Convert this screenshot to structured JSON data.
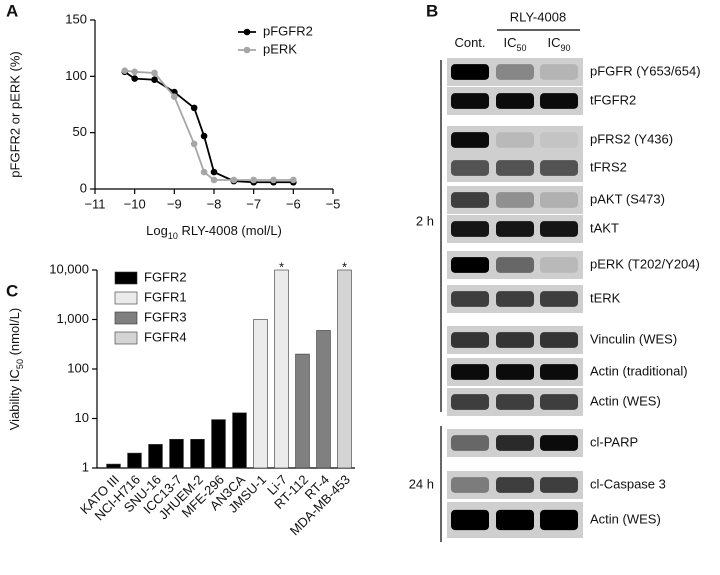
{
  "chart_data": [
    {
      "type": "line",
      "panel_label": "A",
      "x_label": [
        "Log",
        "10",
        " RLY-4008 (mol/L)"
      ],
      "y_label": "pFGFR2 or pERK (%)",
      "x": [
        -10.25,
        -10,
        -9.5,
        -9,
        -8.5,
        -8.25,
        -8,
        -7.5,
        -7,
        -6.5,
        -6
      ],
      "series": [
        {
          "name": "pFGFR2",
          "color": "#000000",
          "values": [
            104,
            98,
            97,
            86,
            72,
            47,
            15,
            7,
            6,
            6,
            6
          ]
        },
        {
          "name": "pERK",
          "color": "#a6a6a6",
          "values": [
            105,
            104,
            103,
            82,
            40,
            15,
            8,
            8,
            8,
            8,
            8
          ]
        }
      ],
      "xlim": [
        -11,
        -5
      ],
      "xticks": [
        {
          "value": -11,
          "label": "−11"
        },
        {
          "value": -10,
          "label": "−10"
        },
        {
          "value": -9,
          "label": "−9"
        },
        {
          "value": -8,
          "label": "−8"
        },
        {
          "value": -7,
          "label": "−7"
        },
        {
          "value": -6,
          "label": "−6"
        },
        {
          "value": -5,
          "label": "−5"
        }
      ],
      "ylim": [
        0,
        150
      ],
      "yticks": [
        0,
        50,
        100,
        150
      ],
      "legend": "upper right"
    },
    {
      "type": "bar",
      "panel_label": "C",
      "log_scale": true,
      "y_label": [
        "Viability IC",
        "50",
        " (nmol/L)"
      ],
      "categories": [
        "KATO III",
        "NCI-H716",
        "SNU-16",
        "ICC13-7",
        "JHUEM-2",
        "MFE-296",
        "AN3CA",
        "JMSU-1",
        "Li-7",
        "RT-112",
        "RT-4",
        "MDA-MB-453"
      ],
      "series": [
        {
          "name": "FGFR2",
          "color": "#000000",
          "values": [
            1.2,
            2,
            3,
            3.8,
            3.8,
            9.5,
            13,
            null,
            null,
            null,
            null,
            null
          ]
        },
        {
          "name": "FGFR1",
          "color": "#ebebeb",
          "values": [
            null,
            null,
            null,
            null,
            null,
            null,
            null,
            1000,
            10000,
            null,
            null,
            null
          ]
        },
        {
          "name": "FGFR3",
          "color": "#808080",
          "values": [
            null,
            null,
            null,
            null,
            null,
            null,
            null,
            null,
            null,
            200,
            600,
            null
          ]
        },
        {
          "name": "FGFR4",
          "color": "#d4d4d4",
          "values": [
            null,
            null,
            null,
            null,
            null,
            null,
            null,
            null,
            null,
            null,
            null,
            10000
          ]
        }
      ],
      "ylim": [
        1,
        10000
      ],
      "yticks": [
        1,
        10,
        100,
        {
          "value": 1000,
          "label": "1,000"
        },
        {
          "value": 10000,
          "label": "10,000"
        }
      ],
      "annotations": [
        {
          "text": "*",
          "category": "Li-7"
        },
        {
          "text": "*",
          "category": "MDA-MB-453"
        }
      ],
      "legend": "upper left"
    }
  ],
  "blot": {
    "panel_label": "B",
    "treatment": "RLY-4008",
    "lanes": [
      [
        "Cont."
      ],
      [
        "IC",
        "50"
      ],
      [
        "IC",
        "90"
      ]
    ],
    "groups": [
      {
        "time": "2 h",
        "rows": [
          "pFGFR (Y653/654)",
          "tFGFR2",
          "pFRS2 (Y436)",
          "tFRS2",
          "pAKT (S473)",
          "tAKT",
          "pERK (T202/Y204)",
          "tERK",
          "Vinculin (WES)",
          "Actin (traditional)",
          "Actin (WES)"
        ]
      },
      {
        "time": "24 h",
        "rows": [
          "cl-PARP",
          "cl-Caspase 3",
          "Actin (WES)"
        ]
      }
    ]
  }
}
